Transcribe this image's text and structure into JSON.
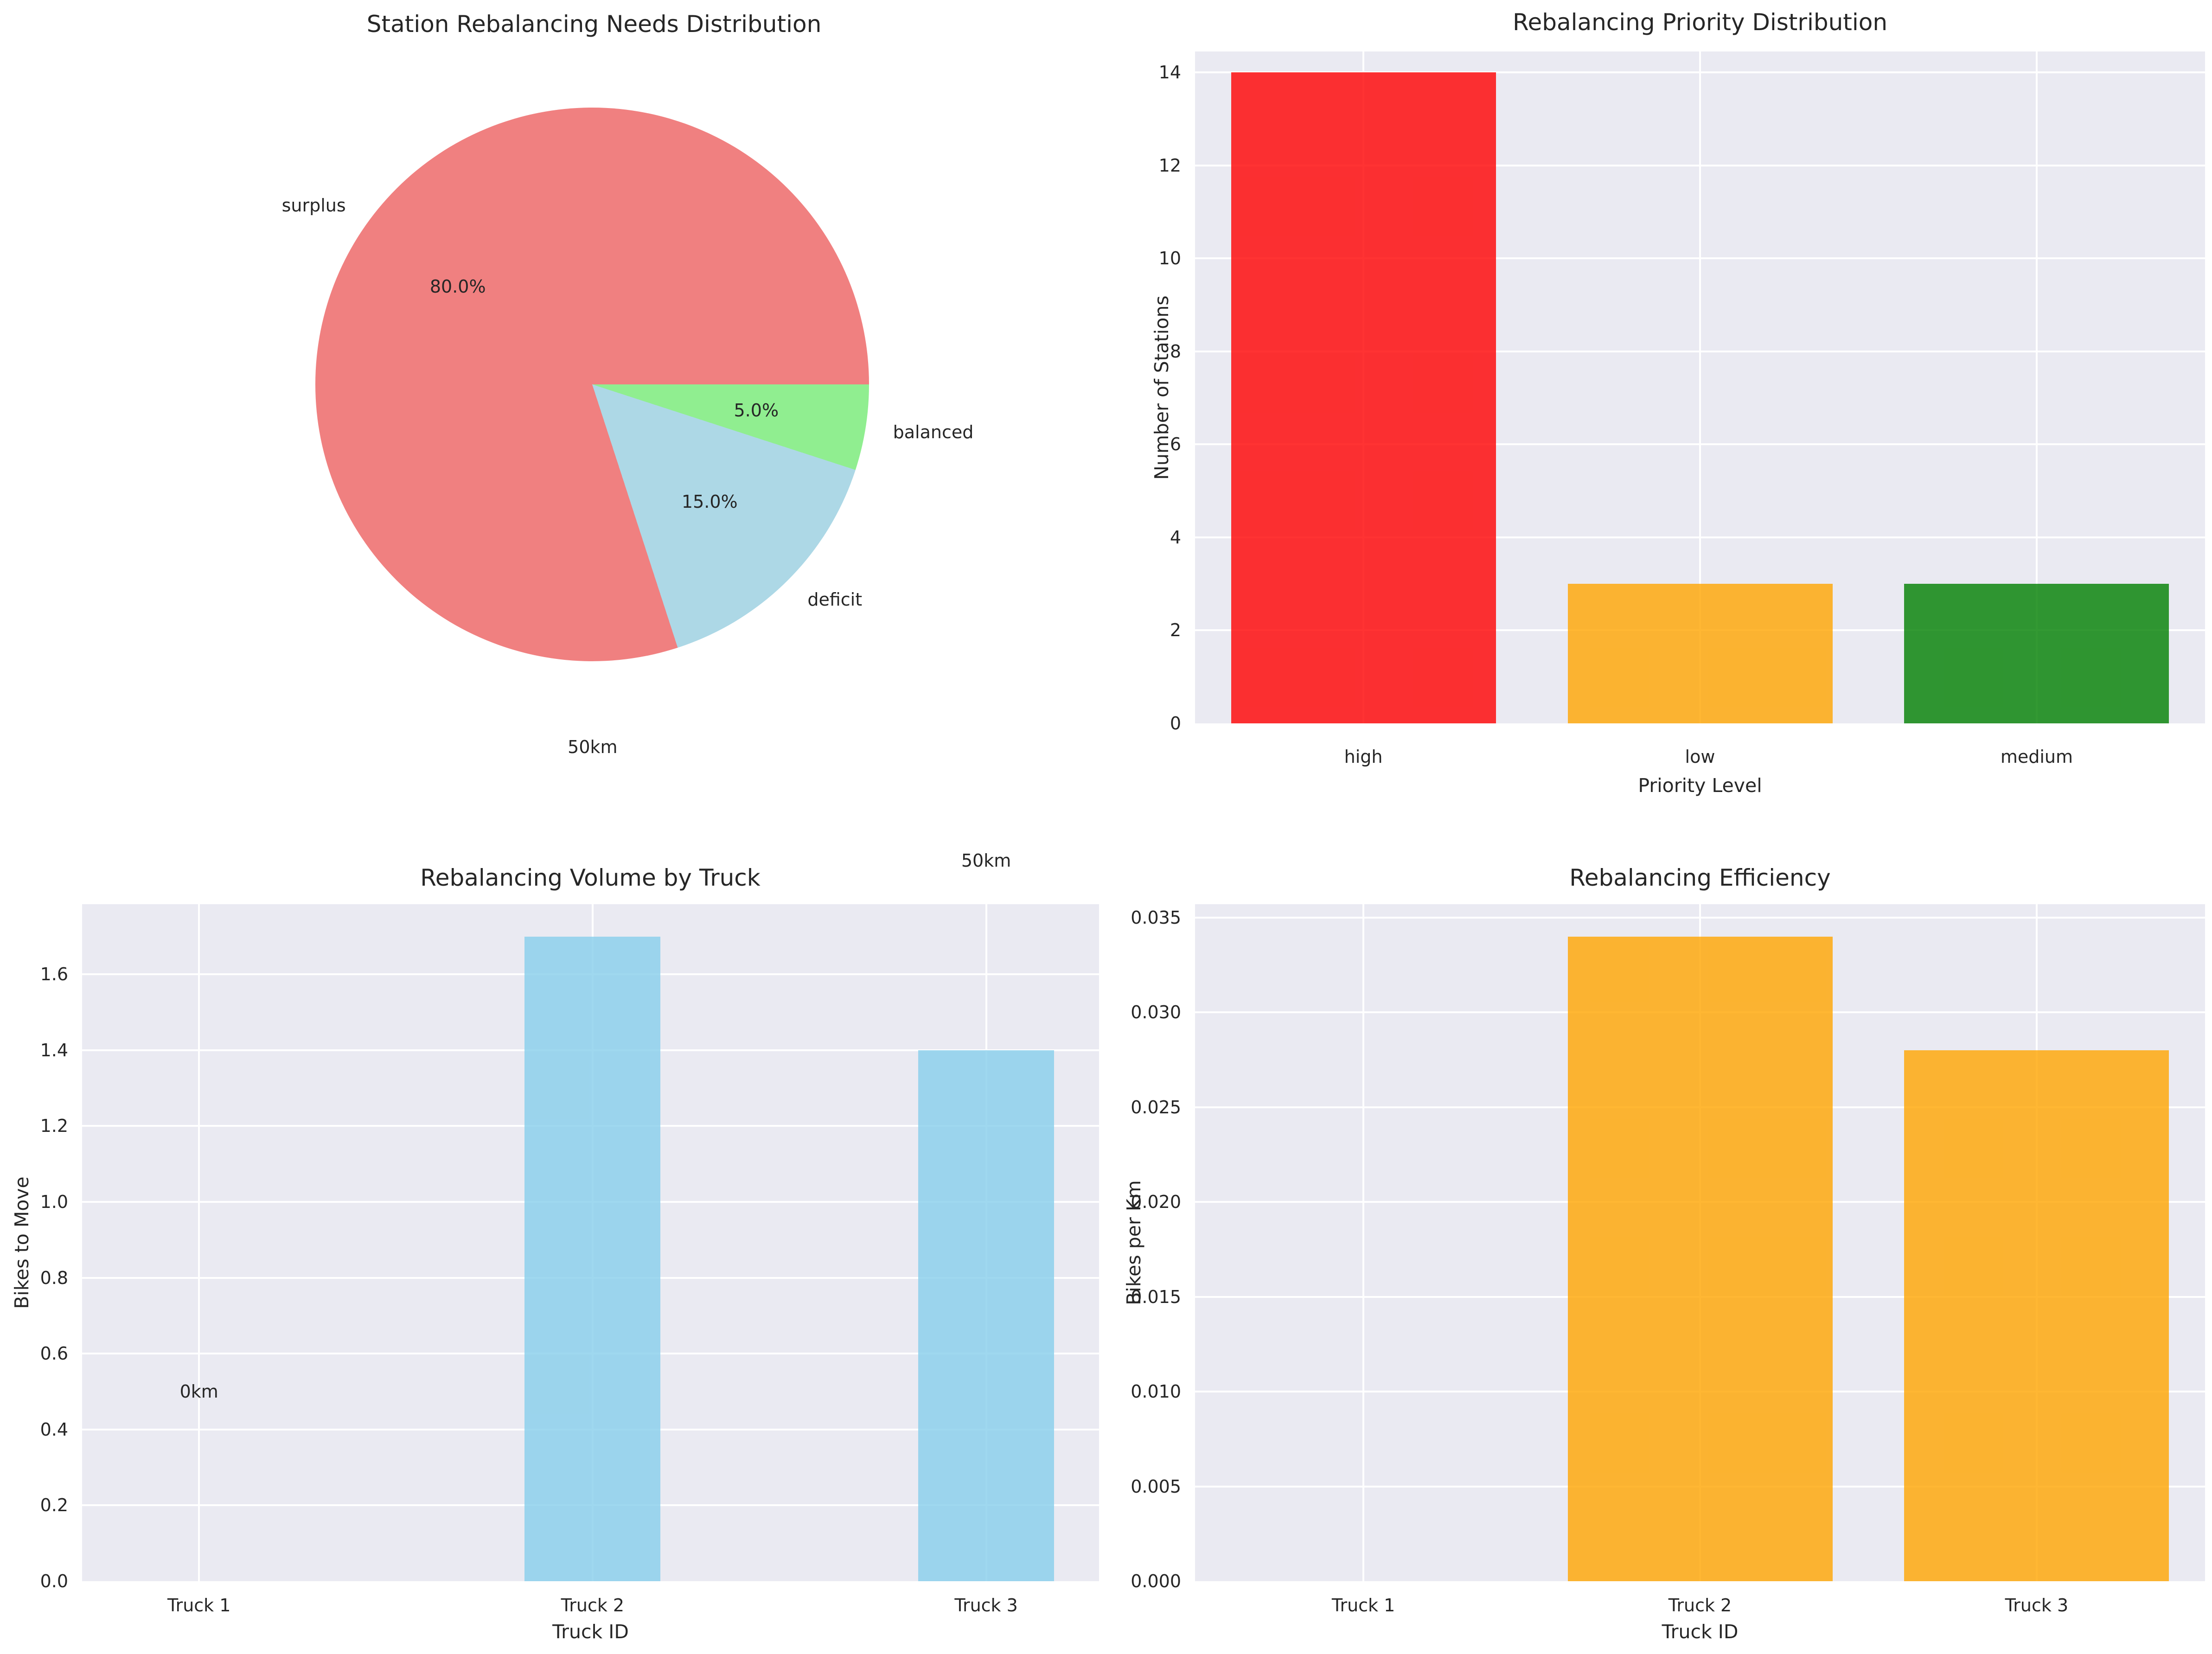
{
  "figure": {
    "background": "#FFFFFF",
    "axes_background": "#EAEAF2",
    "grid_color": "#FFFFFF",
    "text_color": "#262626"
  },
  "chart_data": [
    {
      "id": "needs_pie",
      "type": "pie",
      "title": "Station Rebalancing Needs Distribution",
      "direction": "counterclockwise",
      "start_angle": 0,
      "label_distance": 1.1,
      "pct_distance": 0.6,
      "slices": [
        {
          "label": "surplus",
          "value": 80.0,
          "pct_label": "80.0%",
          "color": "#F08080"
        },
        {
          "label": "deficit",
          "value": 15.0,
          "pct_label": "15.0%",
          "color": "#ADD8E6"
        },
        {
          "label": "balanced",
          "value": 5.0,
          "pct_label": "5.0%",
          "color": "#90EE90"
        }
      ]
    },
    {
      "id": "priority",
      "type": "bar",
      "title": "Rebalancing Priority Distribution",
      "xlabel": "Priority Level",
      "ylabel": "Number of Stations",
      "categories": [
        "high",
        "low",
        "medium"
      ],
      "values": [
        14,
        3,
        3
      ],
      "bar_colors": [
        "#FF0000",
        "#FFA500",
        "#008000"
      ],
      "bar_alpha": 0.8,
      "ylim": [
        0,
        14.45
      ],
      "yticks": [
        0,
        2,
        4,
        6,
        8,
        10,
        12,
        14
      ],
      "ytick_labels": [
        "0",
        "2",
        "4",
        "6",
        "8",
        "10",
        "12",
        "14"
      ],
      "grid": true,
      "annotations": []
    },
    {
      "id": "volume",
      "type": "bar",
      "title": "Rebalancing Volume by Truck",
      "xlabel": "Truck ID",
      "ylabel": "Bikes to Move",
      "categories": [
        "Truck 1",
        "Truck 2",
        "Truck 3"
      ],
      "values": [
        0,
        1.7,
        1.4
      ],
      "bar_colors": [
        "#87CEEB",
        "#87CEEB",
        "#87CEEB"
      ],
      "bar_alpha": 0.8,
      "ylim": [
        0,
        1.785
      ],
      "yticks": [
        0,
        0.2,
        0.4,
        0.6,
        0.8,
        1.0,
        1.2,
        1.4,
        1.6
      ],
      "ytick_labels": [
        "0.0",
        "0.2",
        "0.4",
        "0.6",
        "0.8",
        "1.0",
        "1.2",
        "1.4",
        "1.6"
      ],
      "grid": true,
      "annotations": [
        {
          "text": "0km",
          "category_index": 0,
          "y": 0.5
        },
        {
          "text": "50km",
          "category_index": 1,
          "y": 2.2
        },
        {
          "text": "50km",
          "category_index": 2,
          "y": 1.9
        }
      ]
    },
    {
      "id": "efficiency",
      "type": "bar",
      "title": "Rebalancing Efficiency",
      "xlabel": "Truck ID",
      "ylabel": "Bikes per Km",
      "categories": [
        "Truck 1",
        "Truck 2",
        "Truck 3"
      ],
      "values": [
        0,
        0.034,
        0.028
      ],
      "bar_colors": [
        "#FFA500",
        "#FFA500",
        "#FFA500"
      ],
      "bar_alpha": 0.8,
      "ylim": [
        0,
        0.0357
      ],
      "yticks": [
        0,
        0.005,
        0.01,
        0.015,
        0.02,
        0.025,
        0.03,
        0.035
      ],
      "ytick_labels": [
        "0.000",
        "0.005",
        "0.010",
        "0.015",
        "0.020",
        "0.025",
        "0.030",
        "0.035"
      ],
      "grid": true,
      "annotations": []
    }
  ]
}
